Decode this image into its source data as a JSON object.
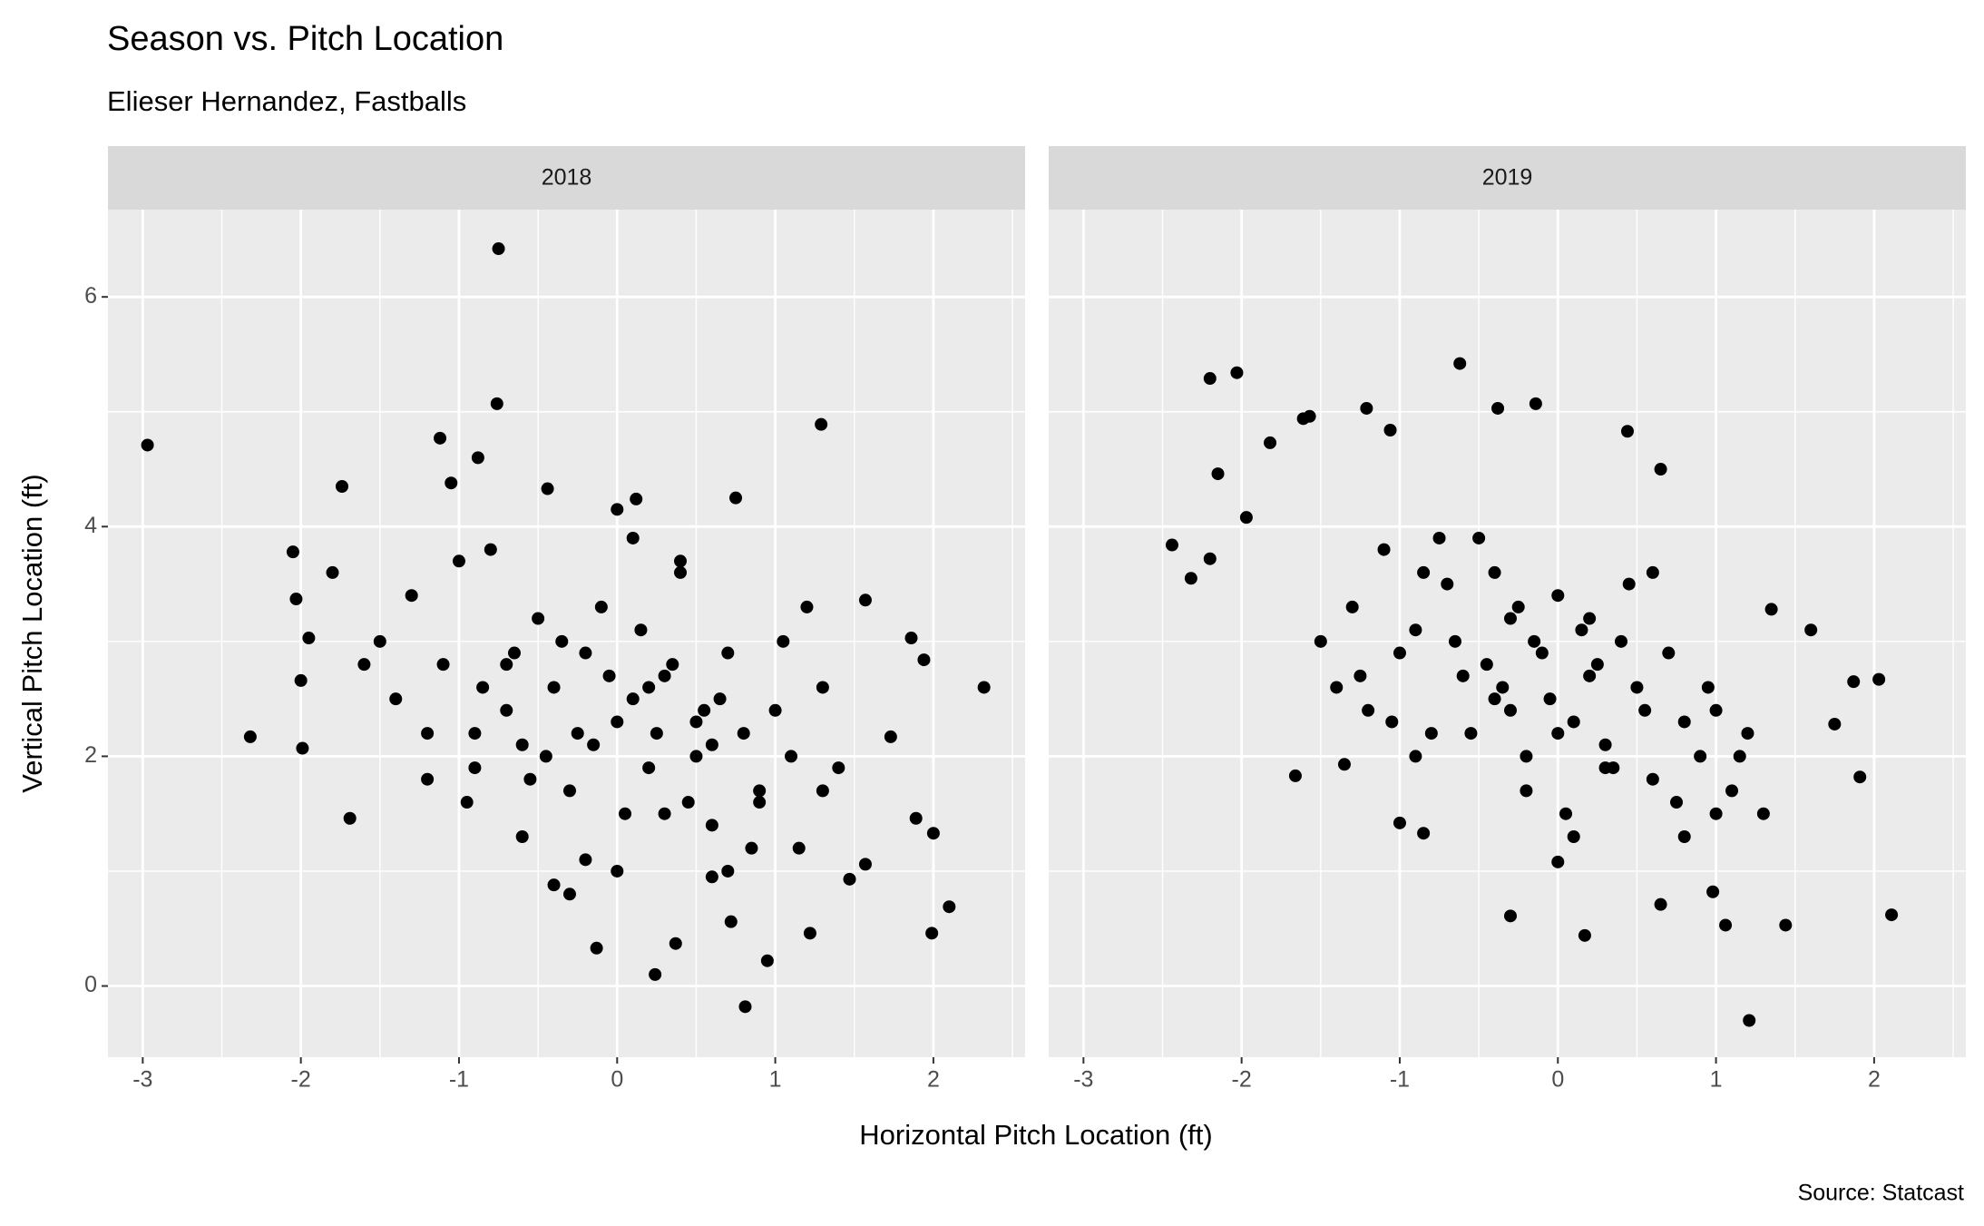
{
  "chart_data": {
    "type": "scatter",
    "title": "Season vs. Pitch Location",
    "subtitle": "Elieser Hernandez, Fastballs",
    "x_label": "Horizontal Pitch Location (ft)",
    "y_label": "Vertical Pitch Location (ft)",
    "caption": "Source: Statcast",
    "color": "#000000",
    "grid": true,
    "xlim": [
      -3.22,
      2.58
    ],
    "ylim": [
      -0.62,
      6.76
    ],
    "xticks": [
      -3,
      -2,
      -1,
      0,
      1,
      2
    ],
    "yticks": [
      0,
      2,
      4,
      6
    ],
    "panels": [
      {
        "name": "2018",
        "x": [
          -2.97,
          -0.75,
          -0.76,
          1.29,
          -2.32,
          2.32,
          0.81,
          0.24,
          -0.13,
          2.1,
          1.99,
          2.0,
          1.94,
          1.86,
          1.89,
          -2.05,
          -2.03,
          -1.74,
          -1.12,
          -0.88,
          -1.05,
          0.72,
          0.95,
          1.22,
          0.37,
          -0.4,
          -1.69,
          -1.99,
          -2.0,
          -1.95,
          0.0,
          0.12,
          0.75,
          -0.44,
          1.57,
          1.57,
          1.47,
          1.73,
          -1.5,
          -1.3,
          -1.2,
          -1.1,
          -1.0,
          -0.9,
          -0.8,
          -0.7,
          -0.6,
          -0.5,
          -0.4,
          -0.3,
          -0.2,
          -0.1,
          0.0,
          0.1,
          0.2,
          0.3,
          0.4,
          0.5,
          0.6,
          0.7,
          0.8,
          0.9,
          1.0,
          1.1,
          1.2,
          1.3,
          1.4,
          -1.4,
          -1.2,
          -0.95,
          -0.85,
          -0.65,
          -0.55,
          -0.35,
          -0.25,
          -0.05,
          0.05,
          0.15,
          0.25,
          0.35,
          0.45,
          0.55,
          0.65,
          0.85,
          1.05,
          1.15,
          -0.6,
          -0.3,
          0.0,
          0.3,
          0.6,
          0.9,
          -0.9,
          -0.45,
          0.2,
          0.5,
          -0.15,
          0.4,
          -0.7,
          0.1,
          0.7,
          1.3,
          -1.6,
          -1.8,
          -0.2,
          0.6
        ],
        "y": [
          4.71,
          6.42,
          5.07,
          4.89,
          2.17,
          2.6,
          -0.18,
          0.1,
          0.33,
          0.69,
          0.46,
          1.33,
          2.84,
          3.03,
          1.46,
          3.78,
          3.37,
          4.35,
          4.77,
          4.6,
          4.38,
          0.56,
          0.22,
          0.46,
          0.37,
          0.88,
          1.46,
          2.07,
          2.66,
          3.03,
          4.15,
          4.24,
          4.25,
          4.33,
          3.36,
          1.06,
          0.93,
          2.17,
          3.0,
          3.4,
          2.2,
          2.8,
          3.7,
          1.9,
          3.8,
          2.4,
          2.1,
          3.2,
          2.6,
          1.7,
          2.9,
          3.3,
          2.3,
          2.5,
          1.9,
          2.7,
          3.6,
          2.0,
          1.4,
          2.9,
          2.2,
          1.7,
          2.4,
          2.0,
          3.3,
          2.6,
          1.9,
          2.5,
          1.8,
          1.6,
          2.6,
          2.9,
          1.8,
          3.0,
          2.2,
          2.7,
          1.5,
          3.1,
          2.2,
          2.8,
          1.6,
          2.4,
          2.5,
          1.2,
          3.0,
          1.2,
          1.3,
          0.8,
          1.0,
          1.5,
          2.1,
          1.6,
          2.2,
          2.0,
          2.6,
          2.3,
          2.1,
          3.7,
          2.8,
          3.9,
          1.0,
          1.7,
          2.8,
          3.6,
          1.1,
          0.95
        ]
      },
      {
        "name": "2019",
        "x": [
          -2.44,
          -2.32,
          -2.2,
          -2.03,
          -2.15,
          -1.97,
          -2.2,
          -1.82,
          -1.61,
          -1.57,
          -1.66,
          -1.35,
          -1.06,
          -1.21,
          -0.62,
          -0.38,
          -0.14,
          0.44,
          0.65,
          -0.3,
          0.17,
          1.21,
          2.11,
          1.44,
          1.06,
          2.03,
          1.91,
          1.87,
          1.75,
          1.6,
          1.35,
          -1.0,
          -0.85,
          0.0,
          0.65,
          0.98,
          -1.4,
          -1.3,
          -1.2,
          -1.1,
          -1.0,
          -0.9,
          -0.8,
          -0.7,
          -0.6,
          -0.5,
          -0.4,
          -0.3,
          -0.2,
          -0.1,
          0.0,
          0.1,
          0.2,
          0.3,
          0.4,
          0.5,
          0.6,
          0.7,
          0.8,
          0.9,
          1.0,
          1.1,
          1.2,
          1.3,
          -1.5,
          -1.25,
          -1.05,
          -0.85,
          -0.65,
          -0.45,
          -0.25,
          -0.05,
          0.15,
          0.35,
          0.55,
          0.75,
          0.95,
          1.15,
          -0.55,
          -0.35,
          -0.15,
          0.05,
          0.25,
          0.45,
          -0.75,
          -0.2,
          0.1,
          0.3,
          -0.4,
          0.6,
          -0.9,
          0.8,
          1.0,
          -0.3,
          0.0,
          0.2
        ],
        "y": [
          3.84,
          3.55,
          5.29,
          5.34,
          4.46,
          4.08,
          3.72,
          4.73,
          4.94,
          4.96,
          1.83,
          1.93,
          4.84,
          5.03,
          5.42,
          5.03,
          5.07,
          4.83,
          4.5,
          0.61,
          0.44,
          -0.3,
          0.62,
          0.53,
          0.53,
          2.67,
          1.82,
          2.65,
          2.28,
          3.1,
          3.28,
          1.42,
          1.33,
          1.08,
          0.71,
          0.82,
          2.6,
          3.3,
          2.4,
          3.8,
          2.9,
          3.1,
          2.2,
          3.5,
          2.7,
          3.9,
          2.5,
          3.2,
          2.0,
          2.9,
          3.4,
          2.3,
          2.7,
          2.1,
          3.0,
          2.6,
          1.8,
          2.9,
          2.3,
          2.0,
          2.4,
          1.7,
          2.2,
          1.5,
          3.0,
          2.7,
          2.3,
          3.6,
          3.0,
          2.8,
          3.3,
          2.5,
          3.1,
          1.9,
          2.4,
          1.6,
          2.6,
          2.0,
          2.2,
          2.6,
          3.0,
          1.5,
          2.8,
          3.5,
          3.9,
          1.7,
          1.3,
          1.9,
          3.6,
          3.6,
          2.0,
          1.3,
          1.5,
          2.4,
          2.2,
          3.2
        ]
      }
    ]
  }
}
